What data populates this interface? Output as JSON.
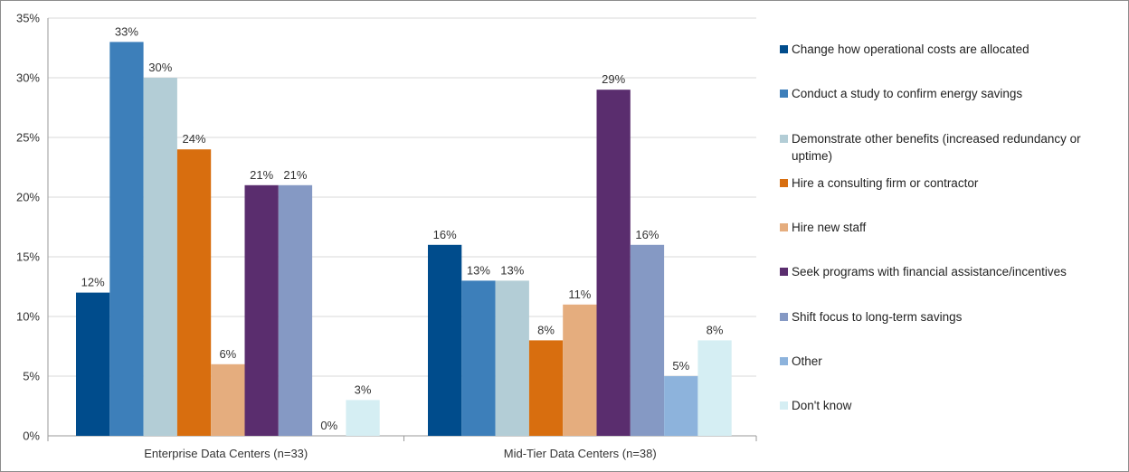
{
  "chart_data": {
    "type": "bar",
    "categories": [
      "Enterprise Data Centers (n=33)",
      "Mid-Tier Data Centers (n=38)"
    ],
    "ylim": [
      0,
      35
    ],
    "yticks": [
      "0%",
      "5%",
      "10%",
      "15%",
      "20%",
      "25%",
      "30%",
      "35%"
    ],
    "grid": true,
    "legend_position": "right",
    "series": [
      {
        "name": "Change how operational costs are allocated",
        "color": "#004C8C",
        "values": [
          12,
          16
        ],
        "labels": [
          "12%",
          "16%"
        ]
      },
      {
        "name": "Conduct a study to confirm energy savings",
        "color": "#3D7FBA",
        "values": [
          33,
          13
        ],
        "labels": [
          "33%",
          "13%"
        ]
      },
      {
        "name": "Demonstrate other benefits (increased redundancy or uptime)",
        "color": "#B3CDD6",
        "values": [
          30,
          13
        ],
        "labels": [
          "30%",
          "13%"
        ]
      },
      {
        "name": "Hire a consulting firm or contractor",
        "color": "#D86E0F",
        "values": [
          24,
          8
        ],
        "labels": [
          "24%",
          "8%"
        ]
      },
      {
        "name": "Hire new staff",
        "color": "#E5AD7E",
        "values": [
          6,
          11
        ],
        "labels": [
          "6%",
          "11%"
        ]
      },
      {
        "name": "Seek programs with financial assistance/incentives",
        "color": "#5A2D6E",
        "values": [
          21,
          29
        ],
        "labels": [
          "21%",
          "29%"
        ]
      },
      {
        "name": "Shift focus to long-term savings",
        "color": "#8599C4",
        "values": [
          21,
          16
        ],
        "labels": [
          "21%",
          "16%"
        ]
      },
      {
        "name": "Other",
        "color": "#8DB3DC",
        "values": [
          0,
          5
        ],
        "labels": [
          "0%",
          "5%"
        ]
      },
      {
        "name": "Don't know",
        "color": "#D5EEF3",
        "values": [
          3,
          8
        ],
        "labels": [
          "3%",
          "8%"
        ]
      }
    ]
  }
}
